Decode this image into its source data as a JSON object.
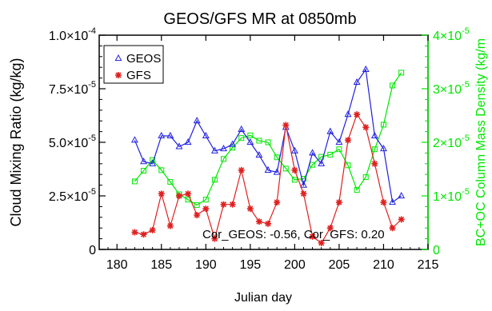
{
  "chart_data": {
    "type": "line",
    "title": "GEOS/GFS MR at 0850mb",
    "xlabel": "Julian day",
    "ylabel": "Cloud Mixing Ratio (kg/kg)",
    "ylabel_right": "BC+OC Column Mass Density (kg/m",
    "xlim": [
      178,
      215
    ],
    "ylim": [
      0,
      0.0001
    ],
    "ylim_right": [
      0,
      4e-05
    ],
    "x_ticks": [
      180,
      185,
      190,
      195,
      200,
      205,
      210,
      215
    ],
    "x_tick_labels": [
      "180",
      "185",
      "190",
      "195",
      "200",
      "205",
      "210",
      "215"
    ],
    "y_ticks": [
      0,
      2.5e-05,
      5e-05,
      7.5e-05,
      0.0001
    ],
    "y_tick_labels": [
      {
        "base": "0",
        "exp": ""
      },
      {
        "base": "2.5×10",
        "exp": "-5"
      },
      {
        "base": "5.0×10",
        "exp": "-5"
      },
      {
        "base": "7.5×10",
        "exp": "-5"
      },
      {
        "base": "1.0×10",
        "exp": "-4"
      }
    ],
    "y_right_ticks": [
      0,
      1e-05,
      2e-05,
      3e-05,
      4e-05
    ],
    "y_right_tick_labels": [
      {
        "base": "0",
        "exp": ""
      },
      {
        "base": "1×10",
        "exp": "-5"
      },
      {
        "base": "2×10",
        "exp": "-5"
      },
      {
        "base": "3×10",
        "exp": "-5"
      },
      {
        "base": "4×10",
        "exp": "-5"
      }
    ],
    "annotation": "Cor_GEOS: -0.56,  Cor_GFS: 0.20",
    "legend_position": "top-left",
    "grid": false,
    "series": [
      {
        "name": "GEOS",
        "axis": "left",
        "color": "#2020e0",
        "marker": "triangle",
        "x": [
          182,
          183,
          184,
          185,
          186,
          187,
          188,
          189,
          190,
          191,
          192,
          193,
          194,
          195,
          196,
          197,
          198,
          199,
          200,
          201,
          202,
          203,
          204,
          205,
          206,
          207,
          208,
          209,
          210,
          211,
          212
        ],
        "y": [
          5.1e-05,
          4.1e-05,
          4e-05,
          5.3e-05,
          5.3e-05,
          4.8e-05,
          5e-05,
          6e-05,
          5.3e-05,
          4.6e-05,
          4.7e-05,
          4.9e-05,
          5.6e-05,
          5e-05,
          4.4e-05,
          3.7e-05,
          3.6e-05,
          5.7e-05,
          4.6e-05,
          3e-05,
          4.5e-05,
          4e-05,
          5.5e-05,
          5e-05,
          6.3e-05,
          7.8e-05,
          8.4e-05,
          5.3e-05,
          4.7e-05,
          2.2e-05,
          2.5e-05
        ]
      },
      {
        "name": "GFS",
        "axis": "left",
        "color": "#e02020",
        "marker": "asterisk",
        "x": [
          182,
          183,
          184,
          185,
          186,
          187,
          188,
          189,
          190,
          191,
          192,
          193,
          194,
          195,
          196,
          197,
          198,
          199,
          200,
          201,
          202,
          203,
          204,
          205,
          206,
          207,
          208,
          209,
          210,
          211,
          212
        ],
        "y": [
          8e-06,
          7e-06,
          9e-06,
          2.6e-05,
          1.1e-05,
          2.5e-05,
          2.6e-05,
          1.6e-05,
          1.9e-05,
          5e-06,
          2.1e-05,
          2.1e-05,
          3.7e-05,
          1.9e-05,
          1.3e-05,
          1.2e-05,
          2.2e-05,
          5.8e-05,
          3.7e-05,
          2.6e-05,
          6e-06,
          3e-06,
          1e-05,
          2.2e-05,
          5.1e-05,
          6.3e-05,
          5.7e-05,
          4e-05,
          2.2e-05,
          1e-05,
          1.4e-05
        ]
      },
      {
        "name": "BC+OC",
        "axis": "right",
        "color": "#00e600",
        "marker": "square",
        "x": [
          182,
          183,
          184,
          185,
          186,
          187,
          188,
          189,
          190,
          191,
          192,
          193,
          194,
          195,
          196,
          197,
          198,
          199,
          200,
          201,
          202,
          203,
          204,
          205,
          206,
          207,
          208,
          209,
          210,
          211,
          212
        ],
        "y": [
          1.27e-05,
          1.47e-05,
          1.67e-05,
          1.48e-05,
          1.26e-05,
          1.03e-05,
          9.3e-06,
          8.3e-06,
          9.3e-06,
          1.3e-05,
          1.69e-05,
          1.9e-05,
          2.08e-05,
          2.13e-05,
          2.03e-05,
          2e-05,
          1.72e-05,
          1.51e-05,
          1.3e-05,
          1.32e-05,
          1.58e-05,
          1.73e-05,
          1.77e-05,
          1.87e-05,
          1.57e-05,
          1.11e-05,
          1.35e-05,
          1.87e-05,
          2.33e-05,
          3.06e-05,
          3.3e-05
        ]
      }
    ]
  }
}
